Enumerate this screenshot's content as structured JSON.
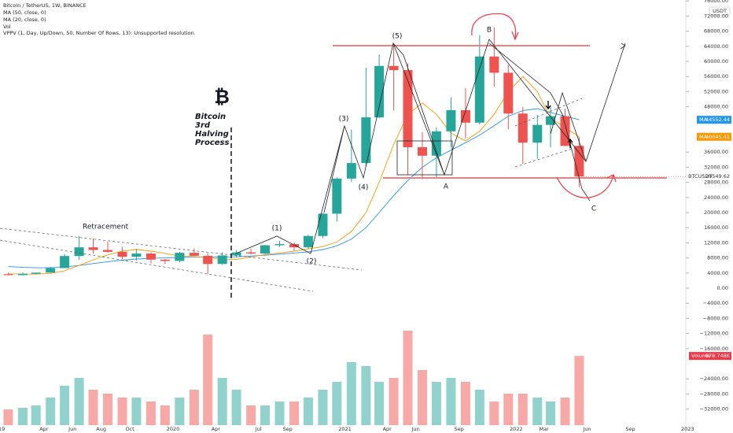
{
  "chart_data": {
    "type": "candlestick",
    "title": "Bitcoin / TetherUS, 1W, BINANCE",
    "indicators": [
      "MA (50, close, 0)",
      "MA (20, close, 0)",
      "Vol",
      "VPPV (1, Day, Up/Down, 50, Number Of Rows, 13): Unsupported resolution."
    ],
    "currency": "USDT",
    "symbol": "BTCUSDT",
    "x": [
      "2019-01",
      "2019-02",
      "2019-03",
      "2019-04",
      "2019-05",
      "2019-06",
      "2019-07",
      "2019-08",
      "2019-09",
      "2019-10",
      "2019-11",
      "2019-12",
      "2020-01",
      "2020-02",
      "2020-03",
      "2020-04",
      "2020-05",
      "2020-06",
      "2020-07",
      "2020-08",
      "2020-09",
      "2020-10",
      "2020-11",
      "2020-12",
      "2021-01",
      "2021-02",
      "2021-03",
      "2021-04",
      "2021-05",
      "2021-06",
      "2021-07",
      "2021-08",
      "2021-09",
      "2021-10",
      "2021-11",
      "2021-12",
      "2022-01",
      "2022-02",
      "2022-03",
      "2022-04",
      "2022-05"
    ],
    "open": [
      3700,
      3450,
      3800,
      4100,
      5300,
      8500,
      10800,
      10100,
      9600,
      8300,
      9150,
      7550,
      7200,
      9350,
      8550,
      6400,
      8650,
      9450,
      9150,
      11350,
      11650,
      10800,
      13800,
      19700,
      29000,
      33100,
      45200,
      58800,
      57700,
      37300,
      35050,
      41500,
      47100,
      43800,
      61300,
      57000,
      46200,
      38500,
      43200,
      45500,
      37650
    ],
    "high": [
      4100,
      4200,
      4100,
      5600,
      9000,
      13800,
      13100,
      12300,
      10900,
      10400,
      9500,
      7700,
      9600,
      10500,
      9200,
      9500,
      10100,
      10400,
      11450,
      12500,
      12100,
      14100,
      19900,
      29300,
      41950,
      58350,
      61800,
      64850,
      59500,
      41300,
      42500,
      50500,
      52950,
      67000,
      69000,
      59100,
      48000,
      45800,
      48200,
      47450,
      40000
    ],
    "low": [
      3400,
      3400,
      3700,
      4050,
      5300,
      7500,
      9100,
      9400,
      7700,
      7300,
      6500,
      6400,
      6850,
      8450,
      3800,
      6150,
      8100,
      8900,
      8950,
      10900,
      9900,
      10400,
      13200,
      17600,
      28100,
      32300,
      44950,
      47000,
      30000,
      28800,
      29300,
      37300,
      39600,
      43300,
      53250,
      42000,
      32900,
      34300,
      37200,
      37600,
      26700
    ],
    "close": [
      3450,
      3800,
      4100,
      5300,
      8500,
      10800,
      10100,
      9600,
      8300,
      9150,
      7550,
      7200,
      9350,
      8550,
      6400,
      8650,
      9450,
      9150,
      11350,
      11650,
      10800,
      13800,
      19700,
      29000,
      33100,
      45200,
      58800,
      57700,
      37300,
      35050,
      41500,
      47100,
      43800,
      61300,
      57000,
      46200,
      38500,
      43200,
      45500,
      37650,
      29549.62
    ],
    "up_color": "#26a69a",
    "down_color": "#ef5350",
    "series": [
      {
        "name": "MA",
        "color": "#2196f3",
        "values": [
          5700,
          5500,
          5400,
          5400,
          5600,
          6000,
          6500,
          7000,
          7400,
          7700,
          7900,
          8000,
          8100,
          8200,
          8200,
          8200,
          8300,
          8500,
          8700,
          9000,
          9300,
          9600,
          10200,
          11200,
          13000,
          16000,
          20000,
          24500,
          28500,
          32000,
          34500,
          36500,
          38500,
          40500,
          43000,
          45500,
          47000,
          47500,
          46500,
          45500,
          44552.44
        ]
      },
      {
        "name": "MA",
        "color": "#ff9800",
        "values": [
          3800,
          3700,
          3700,
          3900,
          4600,
          6000,
          7500,
          8800,
          9800,
          10200,
          9800,
          9200,
          8500,
          8300,
          8200,
          7500,
          7600,
          8200,
          8900,
          9300,
          9800,
          10400,
          11000,
          12200,
          15000,
          20000,
          28000,
          38000,
          46000,
          49000,
          46000,
          41000,
          39000,
          41500,
          46000,
          52000,
          56000,
          52000,
          45000,
          42500,
          40045.41
        ]
      }
    ],
    "volume": {
      "name": "Volume",
      "color": "#f23645",
      "values": [
        200000,
        220000,
        250000,
        350000,
        500000,
        600000,
        450000,
        400000,
        350000,
        350000,
        300000,
        250000,
        350000,
        450000,
        1150000,
        600000,
        450000,
        250000,
        250000,
        300000,
        300000,
        350000,
        450000,
        550000,
        800000,
        750000,
        550000,
        600000,
        1200000,
        700000,
        550000,
        600000,
        550000,
        450000,
        300000,
        400000,
        400000,
        350000,
        300000,
        350000,
        878748
      ],
      "value_labels": [
        null,
        null,
        null,
        null,
        null,
        null,
        null,
        null,
        null,
        null,
        null,
        null,
        null,
        null,
        null,
        null,
        null,
        null,
        null,
        null,
        null,
        null,
        null,
        null,
        null,
        null,
        null,
        null,
        null,
        null,
        null,
        null,
        null,
        null,
        null,
        null,
        null,
        null,
        null,
        null,
        "878.748K"
      ],
      "ylim": [
        0,
        2000000
      ]
    },
    "ylim": [
      -36000,
      76000
    ],
    "yticks": [
      {
        "value": 76000,
        "label": "76000.00"
      },
      {
        "value": 72000,
        "label": "72000.00"
      },
      {
        "value": 68000,
        "label": "68000.00"
      },
      {
        "value": 64000,
        "label": "64000.00"
      },
      {
        "value": 60000,
        "label": "60000.00"
      },
      {
        "value": 56000,
        "label": "56000.00"
      },
      {
        "value": 52000,
        "label": "52000.00"
      },
      {
        "value": 48000,
        "label": "48000.00"
      },
      {
        "value": 36000,
        "label": "36000.00"
      },
      {
        "value": 32000,
        "label": "32000.00"
      },
      {
        "value": 28000,
        "label": "28000.00"
      },
      {
        "value": 24000,
        "label": "24000.00"
      },
      {
        "value": 20000,
        "label": "20000.00"
      },
      {
        "value": 16000,
        "label": "16000.00"
      },
      {
        "value": 12000,
        "label": "12000.00"
      },
      {
        "value": 8000,
        "label": "8000.00"
      },
      {
        "value": 4000,
        "label": "4000.00"
      },
      {
        "value": 0,
        "label": "0.00"
      },
      {
        "value": -4000,
        "label": "−4000.00"
      },
      {
        "value": -8000,
        "label": "−8000.00"
      },
      {
        "value": -12000,
        "label": "−12000.00"
      },
      {
        "value": -16000,
        "label": "−16000.00"
      },
      {
        "value": -24000,
        "label": "−24000.00"
      },
      {
        "value": -28000,
        "label": "−28000.00"
      },
      {
        "value": -32000,
        "label": "−32000.00"
      }
    ],
    "xticks": [
      {
        "value": "2019-01",
        "label": "19"
      },
      {
        "value": "2019-04",
        "label": "Apr"
      },
      {
        "value": "2019-06",
        "label": "Jun"
      },
      {
        "value": "2019-08",
        "label": "Aug"
      },
      {
        "value": "2019-10",
        "label": "Oct"
      },
      {
        "value": "2020-01",
        "label": "2020"
      },
      {
        "value": "2020-04",
        "label": "Apr"
      },
      {
        "value": "2020-07",
        "label": "Jul"
      },
      {
        "value": "2020-09",
        "label": "Sep"
      },
      {
        "value": "2021-01",
        "label": "2021"
      },
      {
        "value": "2021-04",
        "label": "Apr"
      },
      {
        "value": "2021-06",
        "label": "Jun"
      },
      {
        "value": "2021-09",
        "label": "Sep"
      },
      {
        "value": "2022-01",
        "label": "2022"
      },
      {
        "value": "2022-03",
        "label": "Mar"
      },
      {
        "value": "2022-06",
        "label": "Jun"
      },
      {
        "value": "2022-09",
        "label": "Sep"
      },
      {
        "value": "2023-01",
        "label": "2023"
      }
    ]
  },
  "annotations": {
    "retracement": "Retracement",
    "waves": [
      "(1)",
      "(2)",
      "(3)",
      "(4)",
      "(5)",
      "A",
      "B",
      "C"
    ],
    "logo": "₿",
    "halving": [
      "Bitcoin",
      "3rd",
      "Halving",
      "Process"
    ]
  }
}
